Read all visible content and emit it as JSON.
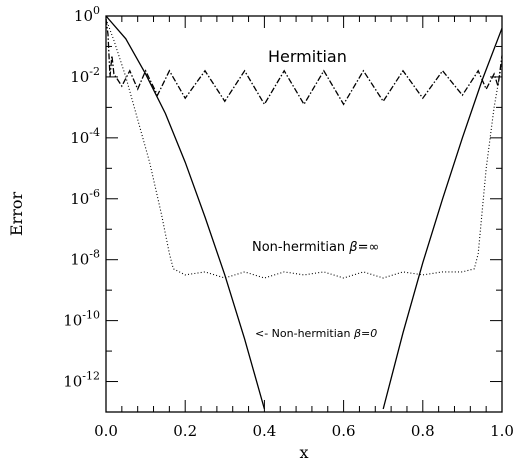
{
  "chart_data": {
    "type": "line",
    "xlabel": "x",
    "ylabel": "Error",
    "xlim": [
      0,
      1
    ],
    "ylim_log10": [
      -13,
      0
    ],
    "yscale": "log",
    "x_ticks": [
      {
        "value": 0.0,
        "label": "0.0"
      },
      {
        "value": 0.2,
        "label": "0.2"
      },
      {
        "value": 0.4,
        "label": "0.4"
      },
      {
        "value": 0.6,
        "label": "0.6"
      },
      {
        "value": 0.8,
        "label": "0.8"
      },
      {
        "value": 1.0,
        "label": "1.0"
      }
    ],
    "y_ticks": [
      {
        "exp": 0,
        "base": "10",
        "sup": "0"
      },
      {
        "exp": -2,
        "base": "10",
        "sup": "-2"
      },
      {
        "exp": -4,
        "base": "10",
        "sup": "-4"
      },
      {
        "exp": -6,
        "base": "10",
        "sup": "-6"
      },
      {
        "exp": -8,
        "base": "10",
        "sup": "-8"
      },
      {
        "exp": -10,
        "base": "10",
        "sup": "-10"
      },
      {
        "exp": -12,
        "base": "10",
        "sup": "-12"
      }
    ],
    "grid": false,
    "annotations": {
      "hermitian": "Hermitian",
      "nonherm_inf_text": "Non-hermitian ",
      "nonherm_inf_beta": "β=∞",
      "nonherm_zero_text": "<- Non-hermitian ",
      "nonherm_zero_beta": "β=0"
    },
    "series": [
      {
        "style": "dash-dot",
        "x": [
          0.0,
          0.005,
          0.01,
          0.015,
          0.02,
          0.04,
          0.06,
          0.08,
          0.1,
          0.13,
          0.16,
          0.2,
          0.25,
          0.3,
          0.35,
          0.4,
          0.45,
          0.5,
          0.55,
          0.6,
          0.65,
          0.7,
          0.75,
          0.8,
          0.85,
          0.9,
          0.94,
          0.96,
          0.98,
          0.99,
          1.0
        ],
        "y_log10": [
          -0.1,
          -0.6,
          -2.0,
          -1.3,
          -1.9,
          -2.3,
          -1.8,
          -2.4,
          -1.8,
          -2.6,
          -1.8,
          -2.7,
          -1.8,
          -2.8,
          -1.8,
          -2.9,
          -1.8,
          -2.9,
          -1.8,
          -2.9,
          -1.8,
          -2.8,
          -1.8,
          -2.7,
          -1.8,
          -2.6,
          -1.8,
          -2.4,
          -1.9,
          -2.3,
          -1.3
        ]
      },
      {
        "style": "dotted",
        "x": [
          0.0,
          0.02,
          0.05,
          0.08,
          0.11,
          0.14,
          0.16,
          0.17,
          0.2,
          0.25,
          0.3,
          0.35,
          0.4,
          0.45,
          0.5,
          0.55,
          0.6,
          0.65,
          0.7,
          0.75,
          0.8,
          0.85,
          0.9,
          0.93,
          0.94,
          0.96,
          0.98,
          1.0
        ],
        "y_log10": [
          -0.1,
          -0.8,
          -2.0,
          -3.4,
          -4.8,
          -6.5,
          -7.8,
          -8.3,
          -8.5,
          -8.4,
          -8.6,
          -8.4,
          -8.6,
          -8.4,
          -8.5,
          -8.4,
          -8.6,
          -8.4,
          -8.6,
          -8.4,
          -8.5,
          -8.4,
          -8.4,
          -8.3,
          -7.8,
          -5.0,
          -3.0,
          -1.5
        ]
      },
      {
        "style": "solid",
        "x": [
          0.0,
          0.05,
          0.1,
          0.15,
          0.2,
          0.25,
          0.3,
          0.35,
          0.4,
          0.7,
          0.75,
          0.8,
          0.85,
          0.9,
          0.95,
          1.0
        ],
        "y_log10": [
          0.0,
          -0.75,
          -1.9,
          -3.2,
          -4.8,
          -6.6,
          -8.5,
          -10.6,
          -12.9,
          -12.9,
          -10.4,
          -8.1,
          -6.0,
          -4.0,
          -2.1,
          -0.4
        ]
      }
    ]
  }
}
